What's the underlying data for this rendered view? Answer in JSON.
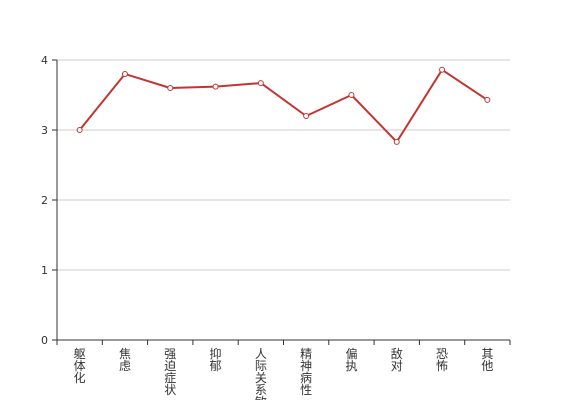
{
  "chart_data": {
    "type": "line",
    "categories": [
      "躯体化",
      "焦虑",
      "强迫症状",
      "抑郁",
      "人际关系敏",
      "精神病性",
      "偏执",
      "敌对",
      "恐怖",
      "其他"
    ],
    "series": [
      {
        "values": [
          3.0,
          3.8,
          3.6,
          3.62,
          3.67,
          3.2,
          3.5,
          2.83,
          3.86,
          3.43
        ]
      }
    ],
    "y_ticks": [
      "0",
      "1",
      "2",
      "3",
      "4"
    ],
    "ylim": [
      0,
      4
    ],
    "grid": true,
    "legend": "none",
    "line_color": "#c23531",
    "grid_color": "#cccccc",
    "axis_color": "#333333"
  }
}
